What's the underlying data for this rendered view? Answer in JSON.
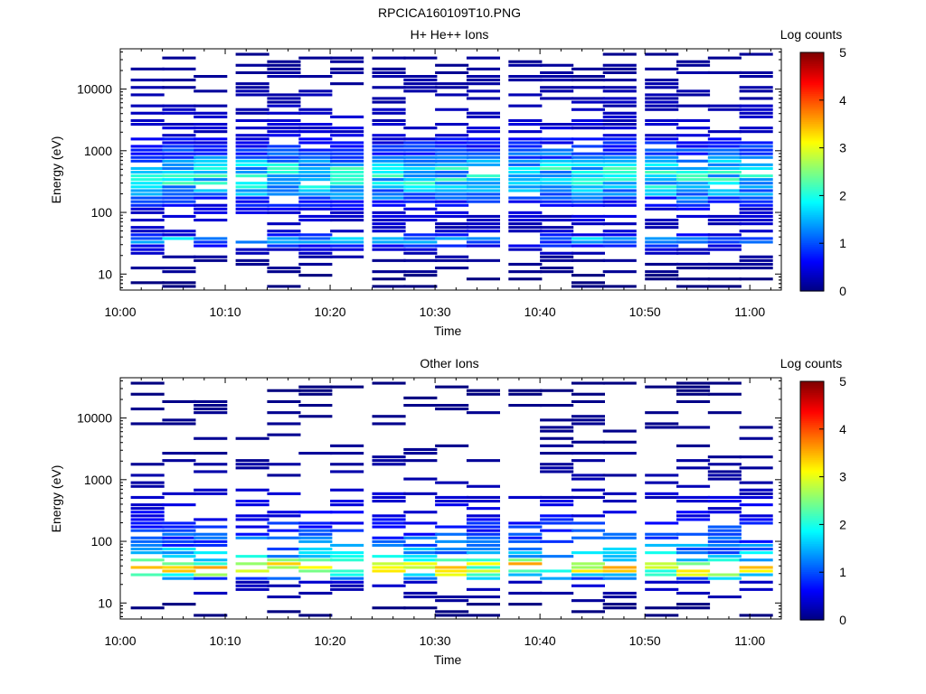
{
  "figure_title": "RPCICA160109T10.PNG",
  "chart_data": [
    {
      "type": "heatmap",
      "title": "H+ He++ Ions",
      "xlabel": "Time",
      "ylabel": "Energy (eV)",
      "y_scale": "log",
      "xticks": [
        "10:00",
        "10:10",
        "10:20",
        "10:30",
        "10:40",
        "10:50",
        "11:00"
      ],
      "yticks": [
        "10",
        "100",
        "1000",
        "10000"
      ],
      "colorbar": {
        "label": "Log counts",
        "ticks": [
          "0",
          "1",
          "2",
          "3",
          "4",
          "5"
        ],
        "range": [
          0,
          5
        ]
      },
      "time_range": [
        "10:00",
        "11:03"
      ],
      "energy_range": [
        5.5,
        45000
      ],
      "time_bins": [
        "10:02",
        "10:05",
        "10:08",
        "10:12",
        "10:15",
        "10:18",
        "10:21",
        "10:25",
        "10:28",
        "10:31",
        "10:34",
        "10:38",
        "10:41",
        "10:44",
        "10:47",
        "10:51",
        "10:54",
        "10:57",
        "11:00"
      ],
      "profile": [
        {
          "e": 10,
          "v": 0.1
        },
        {
          "e": 18,
          "v": 0.1
        },
        {
          "e": 28,
          "v": 0.6
        },
        {
          "e": 33,
          "v": 1.2
        },
        {
          "e": 38,
          "v": 1.5
        },
        {
          "e": 45,
          "v": 0.5
        },
        {
          "e": 55,
          "v": 0.3
        },
        {
          "e": 120,
          "v": 0.5
        },
        {
          "e": 160,
          "v": 1.0
        },
        {
          "e": 250,
          "v": 1.6
        },
        {
          "e": 350,
          "v": 1.9
        },
        {
          "e": 500,
          "v": 1.8
        },
        {
          "e": 800,
          "v": 1.2
        },
        {
          "e": 1200,
          "v": 0.8
        },
        {
          "e": 2000,
          "v": 0.4
        },
        {
          "e": 5000,
          "v": 0.3
        },
        {
          "e": 10000,
          "v": 0.2
        },
        {
          "e": 40000,
          "v": 0.1
        }
      ],
      "peak_log_counts": 2.3,
      "fill_fraction": 0.62
    },
    {
      "type": "heatmap",
      "title": "Other Ions",
      "xlabel": "Time",
      "ylabel": "Energy (eV)",
      "y_scale": "log",
      "xticks": [
        "10:00",
        "10:10",
        "10:20",
        "10:30",
        "10:40",
        "10:50",
        "11:00"
      ],
      "yticks": [
        "10",
        "100",
        "1000",
        "10000"
      ],
      "colorbar": {
        "label": "Log counts",
        "ticks": [
          "0",
          "1",
          "2",
          "3",
          "4",
          "5"
        ],
        "range": [
          0,
          5
        ]
      },
      "time_range": [
        "10:00",
        "11:03"
      ],
      "energy_range": [
        5.5,
        45000
      ],
      "time_bins": [
        "10:02",
        "10:05",
        "10:08",
        "10:12",
        "10:15",
        "10:18",
        "10:21",
        "10:25",
        "10:28",
        "10:31",
        "10:34",
        "10:38",
        "10:41",
        "10:44",
        "10:47",
        "10:51",
        "10:54",
        "10:57",
        "11:00"
      ],
      "profile": [
        {
          "e": 10,
          "v": 0.1
        },
        {
          "e": 22,
          "v": 0.4
        },
        {
          "e": 26,
          "v": 1.6
        },
        {
          "e": 30,
          "v": 2.7
        },
        {
          "e": 35,
          "v": 3.5
        },
        {
          "e": 42,
          "v": 3.0
        },
        {
          "e": 50,
          "v": 2.0
        },
        {
          "e": 70,
          "v": 1.4
        },
        {
          "e": 100,
          "v": 1.1
        },
        {
          "e": 150,
          "v": 0.9
        },
        {
          "e": 250,
          "v": 0.6
        },
        {
          "e": 500,
          "v": 0.4
        },
        {
          "e": 1000,
          "v": 0.2
        },
        {
          "e": 3000,
          "v": 0.1
        },
        {
          "e": 20000,
          "v": 0.05
        }
      ],
      "peak_log_counts": 3.6,
      "fill_fraction": 0.42
    }
  ]
}
